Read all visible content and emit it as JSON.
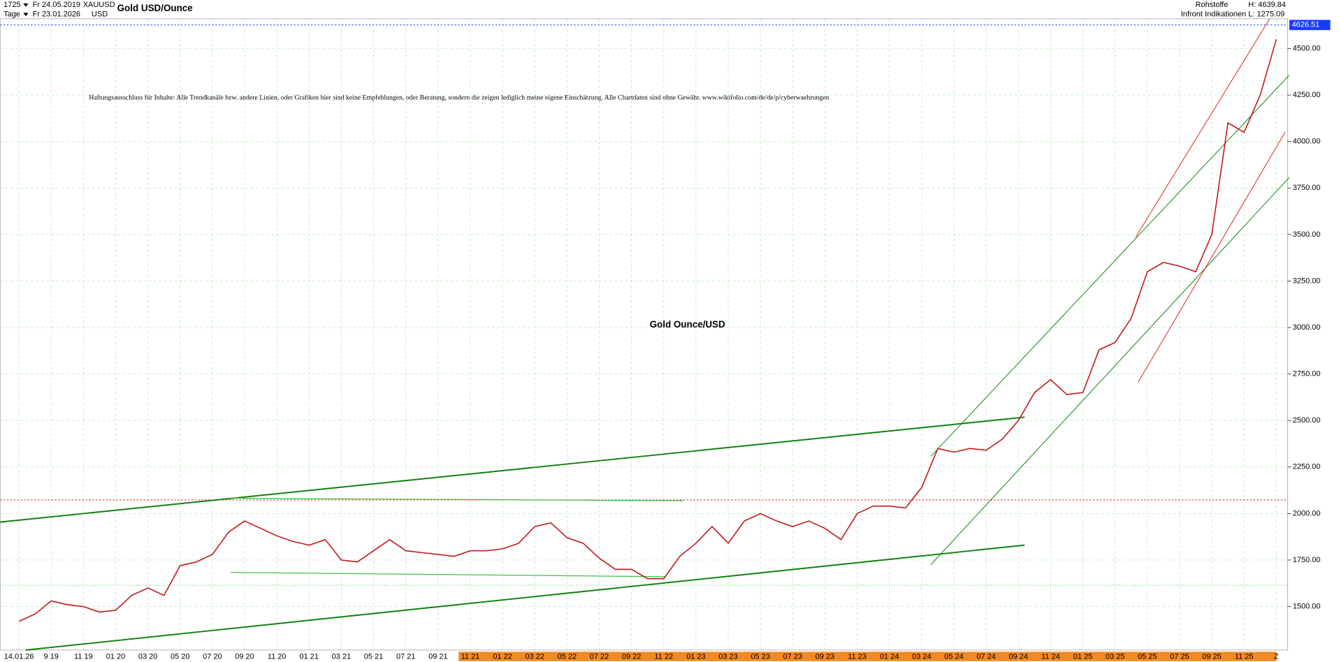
{
  "chart_data": {
    "type": "line",
    "header": {
      "bars": "1725",
      "period": "Tage",
      "from": "Fr 24.05.2019",
      "to": "Fr 23.01.2026",
      "symbol": "XAUUSD",
      "currency": "USD",
      "title": "Gold USD/Ounce",
      "group": "Rohstoffe",
      "source": "Infront Indikationen",
      "high": "H: 4639.84",
      "low": "L: 1275.09"
    },
    "disclaimer": "Haftungsausschluss für Inhalte: Alle Trendkanäle bzw. andere Linien, oder Grafiken hier sind keine Empfehlungen, oder Beratung, sondern die zeigen lediglich meine eigene Einschätzung. Alle Chartdaten sind ohne Gewähr. www.wikifolio.com/de/de/p/cyberwaehrungen",
    "annotation": "Gold Ounce/USD",
    "categories": [
      "14.01.26",
      null,
      "9 19",
      null,
      "11 19",
      null,
      "01 20",
      null,
      "03 20",
      null,
      "05 20",
      null,
      "07 20",
      null,
      "09 20",
      null,
      "11 20",
      null,
      "01 21",
      null,
      "03 21",
      null,
      "05 21",
      null,
      "07 21",
      null,
      "09 21",
      null,
      "11 21",
      null,
      "01 22",
      null,
      "03 22",
      null,
      "05 22",
      null,
      "07 22",
      null,
      "09 22",
      null,
      "11 22",
      null,
      "01 23",
      null,
      "03 23",
      null,
      "05 23",
      null,
      "07 23",
      null,
      "09 23",
      null,
      "11 23",
      null,
      "01 24",
      null,
      "03 24",
      null,
      "05 24",
      null,
      "07 24",
      null,
      "09 24",
      null,
      "11 24",
      null,
      "01 25",
      null,
      "03 25",
      null,
      "05 25",
      null,
      "07 25",
      null,
      "09 25",
      null,
      "11 25",
      null,
      "Z"
    ],
    "series": [
      {
        "name": "XAUUSD",
        "color": "#c0181c",
        "values": [
          1420,
          1460,
          1530,
          1510,
          1500,
          1470,
          1480,
          1560,
          1600,
          1560,
          1720,
          1740,
          1780,
          1900,
          1960,
          1920,
          1880,
          1850,
          1830,
          1860,
          1750,
          1740,
          1800,
          1860,
          1800,
          1790,
          1780,
          1770,
          1800,
          1800,
          1810,
          1840,
          1930,
          1950,
          1870,
          1840,
          1760,
          1700,
          1700,
          1650,
          1650,
          1770,
          1840,
          1930,
          1840,
          1960,
          2000,
          1960,
          1930,
          1960,
          1920,
          1860,
          2000,
          2040,
          2040,
          2030,
          2140,
          2350,
          2330,
          2350,
          2340,
          2400,
          2500,
          2650,
          2720,
          2640,
          2650,
          2880,
          2920,
          3050,
          3300,
          3350,
          3330,
          3300,
          3500,
          4100,
          4050,
          4250,
          4550
        ]
      }
    ],
    "last_value": 4626.51,
    "ylim": [
      1266,
      4660
    ],
    "yticks": [
      {
        "value": 1500,
        "label": "1500.00"
      },
      {
        "value": 1750,
        "label": "1750.00"
      },
      {
        "value": 2000,
        "label": "2000.00"
      },
      {
        "value": 2250,
        "label": "2250.00"
      },
      {
        "value": 2500,
        "label": "2500.00"
      },
      {
        "value": 2750,
        "label": "2750.00"
      },
      {
        "value": 3000,
        "label": "3000.00"
      },
      {
        "value": 3250,
        "label": "3250.00"
      },
      {
        "value": 3500,
        "label": "3500.00"
      },
      {
        "value": 3750,
        "label": "3750.00"
      },
      {
        "value": 4000,
        "label": "4000.00"
      },
      {
        "value": 4250,
        "label": "4250.00"
      },
      {
        "value": 4500,
        "label": "4500.00"
      }
    ],
    "grid": true
  }
}
